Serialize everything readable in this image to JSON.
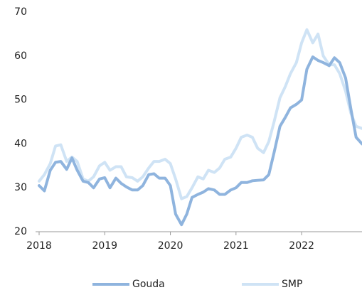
{
  "chart_data": {
    "type": "line",
    "x": [
      2018.0,
      2018.08,
      2018.17,
      2018.25,
      2018.33,
      2018.42,
      2018.5,
      2018.58,
      2018.67,
      2018.75,
      2018.83,
      2018.92,
      2019.0,
      2019.08,
      2019.17,
      2019.25,
      2019.33,
      2019.42,
      2019.5,
      2019.58,
      2019.67,
      2019.75,
      2019.83,
      2019.92,
      2020.0,
      2020.08,
      2020.17,
      2020.25,
      2020.33,
      2020.42,
      2020.5,
      2020.58,
      2020.67,
      2020.75,
      2020.83,
      2020.92,
      2021.0,
      2021.08,
      2021.17,
      2021.25,
      2021.33,
      2021.42,
      2021.5,
      2021.58,
      2021.67,
      2021.75,
      2021.83,
      2021.92,
      2022.0,
      2022.08,
      2022.17,
      2022.25,
      2022.33,
      2022.42,
      2022.5,
      2022.58,
      2022.67,
      2022.75,
      2022.83,
      2022.92
    ],
    "series": [
      {
        "name": "Gouda",
        "color": "#8fb4de",
        "values": [
          30.5,
          29.3,
          34,
          35.8,
          36,
          34.2,
          36.8,
          34,
          31.5,
          31.2,
          30,
          32,
          32.3,
          30,
          32.2,
          31,
          30.2,
          29.5,
          29.5,
          30.5,
          33,
          33.2,
          32.2,
          32.2,
          30.5,
          24,
          21.6,
          24,
          27.8,
          28.5,
          29,
          29.8,
          29.5,
          28.5,
          28.5,
          29.5,
          30,
          31.2,
          31.2,
          31.6,
          31.7,
          31.8,
          33,
          38,
          44,
          46,
          48.2,
          49,
          50,
          57,
          59.8,
          59,
          58.5,
          57.8,
          59.6,
          58.5,
          55,
          48,
          41.5,
          40
        ]
      },
      {
        "name": "SMP",
        "color": "#cfe3f5",
        "values": [
          31.5,
          33,
          35.5,
          39.5,
          39.8,
          36,
          37,
          36,
          32,
          31.5,
          32.5,
          35,
          35.8,
          34,
          34.8,
          34.8,
          32.5,
          32.3,
          31.5,
          32.5,
          34.5,
          36,
          36,
          36.5,
          35.5,
          32,
          27.5,
          28,
          30,
          32.5,
          32,
          34,
          33.5,
          34.5,
          36.5,
          37,
          39,
          41.5,
          42,
          41.5,
          39,
          38,
          40.5,
          45,
          50.5,
          53,
          56,
          58.5,
          63,
          66,
          63,
          65,
          60,
          58,
          58,
          56,
          52,
          47,
          44,
          43.5
        ]
      }
    ],
    "xlim": [
      2018,
      2022.92
    ],
    "xticks": [
      2018,
      2019,
      2020,
      2021,
      2022
    ],
    "ylim": [
      20,
      70
    ],
    "yticks": [
      20,
      30,
      40,
      50,
      60,
      70
    ]
  }
}
